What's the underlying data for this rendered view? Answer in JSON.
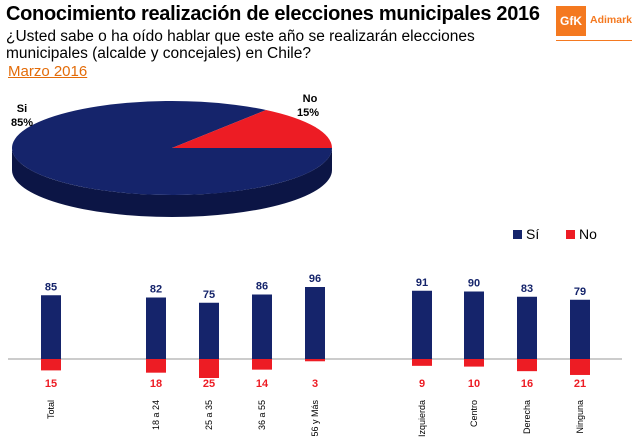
{
  "header": {
    "title": "Conocimiento realización de elecciones municipales 2016",
    "question": "¿Usted sabe o ha oído hablar que este año se realizarán elecciones municipales (alcalde y concejales) en Chile?",
    "date_link": "Marzo 2016"
  },
  "logo": {
    "mark": "GfK",
    "brand": "Adimark",
    "brand_color": "#f47920"
  },
  "colors": {
    "si": "#15246b",
    "no": "#ed1c24",
    "date": "#e36c09"
  },
  "pie": {
    "slices": [
      {
        "label": "Si",
        "value": "85%",
        "number": 85
      },
      {
        "label": "No",
        "value": "15%",
        "number": 15
      }
    ]
  },
  "legend": {
    "si": "Sí",
    "no": "No"
  },
  "chart_data": {
    "type": "bar",
    "title": "",
    "categories": [
      "Total",
      "18 a 24",
      "25 a 35",
      "36 a 55",
      "56 y Más",
      "Izquierda",
      "Centro",
      "Derecha",
      "Ninguna"
    ],
    "series": [
      {
        "name": "Sí",
        "values": [
          85,
          82,
          75,
          86,
          96,
          91,
          90,
          83,
          79
        ]
      },
      {
        "name": "No",
        "values": [
          15,
          18,
          25,
          14,
          3,
          9,
          10,
          16,
          21
        ]
      }
    ],
    "xlabel": "",
    "ylabel": "",
    "ylim": [
      -25,
      100
    ]
  }
}
